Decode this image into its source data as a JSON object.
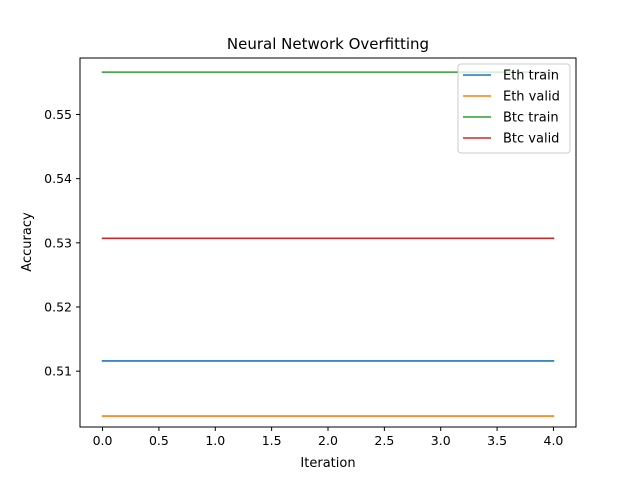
{
  "chart_data": {
    "type": "line",
    "title": "Neural Network Overfitting",
    "xlabel": "Iteration",
    "ylabel": "Accuracy",
    "x": [
      0,
      1,
      2,
      3,
      4
    ],
    "xlim": [
      -0.2,
      4.2
    ],
    "ylim": [
      0.5013,
      0.5588
    ],
    "xticks": [
      "0.0",
      "0.5",
      "1.0",
      "1.5",
      "2.0",
      "2.5",
      "3.0",
      "3.5",
      "4.0"
    ],
    "yticks": [
      "0.51",
      "0.52",
      "0.53",
      "0.54",
      "0.55"
    ],
    "grid": false,
    "legend_position": "top-right",
    "series": [
      {
        "name": "Eth train",
        "color": "#1f77b4",
        "values": [
          0.5116,
          0.5116,
          0.5116,
          0.5116,
          0.5116
        ]
      },
      {
        "name": "Eth valid",
        "color": "#ff7f0e",
        "values": [
          0.503,
          0.503,
          0.503,
          0.503,
          0.503
        ]
      },
      {
        "name": "Btc train",
        "color": "#2ca02c",
        "values": [
          0.5566,
          0.5566,
          0.5566,
          0.5566,
          0.5566
        ]
      },
      {
        "name": "Btc valid",
        "color": "#d62728",
        "values": [
          0.5307,
          0.5307,
          0.5307,
          0.5307,
          0.5307
        ]
      }
    ]
  }
}
